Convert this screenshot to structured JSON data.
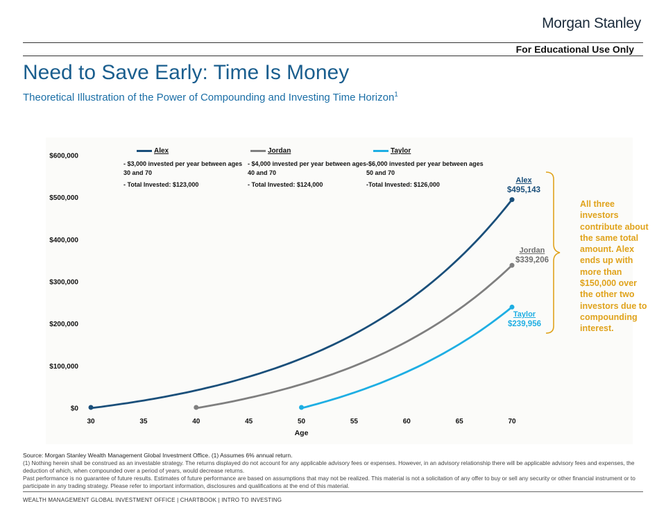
{
  "header": {
    "brand": "Morgan Stanley",
    "disclaimer_tag": "For Educational Use Only",
    "title": "Need to Save Early: Time Is Money",
    "subtitle": "Theoretical Illustration of the Power of Compounding and Investing Time Horizon",
    "subtitle_footnote": "1"
  },
  "colors": {
    "alex": "#1a4f7a",
    "jordan": "#7f7f7f",
    "taylor": "#1eaee3",
    "annotation": "#e0a31c"
  },
  "legend": [
    {
      "name": "Alex",
      "note1": "- $3,000 invested per year between ages 30 and 70",
      "note2": "- Total Invested: $123,000"
    },
    {
      "name": "Jordan",
      "note1": "- $4,000 invested per year between ages 40 and 70",
      "note2": "- Total Invested: $124,000"
    },
    {
      "name": "Taylor",
      "note1": "-$6,000 invested  per year between ages 50 and 70",
      "note2": "-Total Invested: $126,000"
    }
  ],
  "callouts": [
    {
      "name": "Alex",
      "value": "$495,143"
    },
    {
      "name": "Jordan",
      "value": "$339,206"
    },
    {
      "name": "Taylor",
      "value": "$239,956"
    }
  ],
  "annotation": "All three investors contribute about the same total amount. Alex ends up with more than $150,000 over the other two investors due to compounding interest.",
  "chart_data": {
    "type": "line",
    "xlabel": "Age",
    "ylabel": "",
    "xlim": [
      30,
      70
    ],
    "ylim": [
      0,
      600000
    ],
    "x_ticks": [
      "30",
      "35",
      "40",
      "45",
      "50",
      "55",
      "60",
      "65",
      "70"
    ],
    "y_ticks": [
      "$0",
      "$100,000",
      "$200,000",
      "$300,000",
      "$400,000",
      "$500,000",
      "$600,000"
    ],
    "rate": 0.06,
    "series": [
      {
        "name": "Alex",
        "start_age": 30,
        "annual": 3000,
        "final_value": 495143
      },
      {
        "name": "Jordan",
        "start_age": 40,
        "annual": 4000,
        "final_value": 339206
      },
      {
        "name": "Taylor",
        "start_age": 50,
        "annual": 6000,
        "final_value": 239956
      }
    ]
  },
  "footnotes": {
    "source": "Source: Morgan Stanley Wealth Management Global Investment Office. (1) Assumes 6% annual return.",
    "note1": "(1) Nothing herein shall be construed as an investable strategy. The returns displayed do not account for any applicable advisory fees or expenses. However, in an advisory relationship there will be applicable advisory fees and expenses, the deduction of which, when compounded over a period of years, would decrease returns.",
    "note2": "Past performance is no guarantee of future results. Estimates of future performance are based on assumptions that may not be realized. This material is not a solicitation of any offer to buy or sell any security or other financial instrument or to participate in any trading strategy. Please refer to important information, disclosures and qualifications at the end of this material."
  },
  "footer": "WEALTH MANAGEMENT GLOBAL INVESTMENT OFFICE  |  CHARTBOOK  |  INTRO TO INVESTING"
}
